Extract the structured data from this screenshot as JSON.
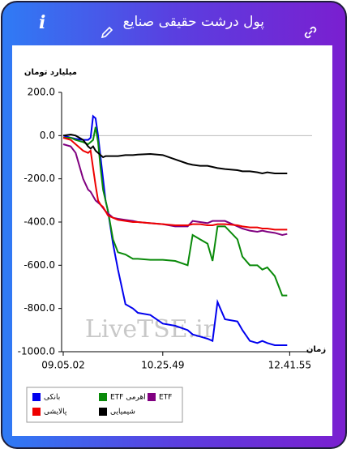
{
  "header": {
    "title": "پول درشت حقیقی صنایع",
    "info": "i"
  },
  "chart_data": {
    "type": "line",
    "y_label": "میلیارد تومان",
    "x_label": "زمان",
    "watermark": "LiveTSE.ir",
    "x": [
      0,
      3,
      5,
      8,
      10,
      11,
      12,
      13,
      14,
      15,
      16,
      17,
      18,
      20,
      22,
      25,
      28,
      30,
      35,
      40,
      45,
      50,
      52,
      55,
      58,
      60,
      62,
      65,
      70,
      72,
      75,
      78,
      80,
      82,
      85,
      88,
      90
    ],
    "xlim": [
      0,
      100
    ],
    "xticks": [
      {
        "value": 0,
        "label": "09.05.02"
      },
      {
        "value": 40,
        "label": "10.25.49"
      },
      {
        "value": 91,
        "label": "12.41.55"
      }
    ],
    "ylim": [
      -1000,
      200
    ],
    "yticks": [
      {
        "value": 200,
        "label": "200.0"
      },
      {
        "value": 0,
        "label": "0.0"
      },
      {
        "value": -200,
        "label": "-200.0"
      },
      {
        "value": -400,
        "label": "-400.0"
      },
      {
        "value": -600,
        "label": "-600.0"
      },
      {
        "value": -800,
        "label": "-800.0"
      },
      {
        "value": -1000,
        "label": "-1000.0"
      }
    ],
    "grid": false,
    "series": [
      {
        "name": "بانکی",
        "color": "#0000ee",
        "values": [
          0,
          -10,
          -15,
          -20,
          -20,
          -10,
          90,
          80,
          0,
          -100,
          -200,
          -300,
          -350,
          -500,
          -620,
          -780,
          -800,
          -820,
          -830,
          -870,
          -880,
          -900,
          -920,
          -930,
          -940,
          -950,
          -770,
          -850,
          -860,
          -900,
          -950,
          -960,
          -950,
          -960,
          -970,
          -970,
          -970
        ]
      },
      {
        "name": "ETF اهرمی",
        "color": "#0a8a0a",
        "values": [
          -10,
          -10,
          -20,
          -30,
          -40,
          -30,
          -20,
          40,
          -30,
          -150,
          -250,
          -300,
          -350,
          -480,
          -540,
          -550,
          -570,
          -570,
          -575,
          -575,
          -580,
          -600,
          -460,
          -480,
          -500,
          -580,
          -420,
          -420,
          -480,
          -560,
          -600,
          -600,
          -620,
          -610,
          -650,
          -740,
          -740
        ]
      },
      {
        "name": "ETF",
        "color": "#800080",
        "values": [
          -40,
          -50,
          -80,
          -200,
          -250,
          -260,
          -280,
          -300,
          -310,
          -320,
          -335,
          -350,
          -360,
          -380,
          -385,
          -390,
          -395,
          -400,
          -405,
          -410,
          -420,
          -420,
          -395,
          -400,
          -405,
          -395,
          -395,
          -395,
          -420,
          -430,
          -440,
          -445,
          -440,
          -445,
          -450,
          -460,
          -455
        ]
      },
      {
        "name": "پالایشی",
        "color": "#ee0000",
        "values": [
          -10,
          -20,
          -40,
          -70,
          -80,
          -70,
          -150,
          -230,
          -300,
          -320,
          -330,
          -350,
          -370,
          -380,
          -390,
          -395,
          -400,
          -400,
          -405,
          -410,
          -415,
          -415,
          -410,
          -410,
          -415,
          -415,
          -410,
          -410,
          -415,
          -420,
          -425,
          -425,
          -430,
          -430,
          -435,
          -435,
          -435
        ]
      },
      {
        "name": "شیمیایی",
        "color": "#000000",
        "values": [
          0,
          5,
          0,
          -20,
          -50,
          -60,
          -50,
          -70,
          -80,
          -90,
          -100,
          -95,
          -95,
          -95,
          -95,
          -90,
          -90,
          -88,
          -85,
          -90,
          -110,
          -130,
          -135,
          -140,
          -140,
          -145,
          -150,
          -155,
          -160,
          -165,
          -165,
          -170,
          -175,
          -170,
          -175,
          -175,
          -175
        ]
      }
    ]
  }
}
